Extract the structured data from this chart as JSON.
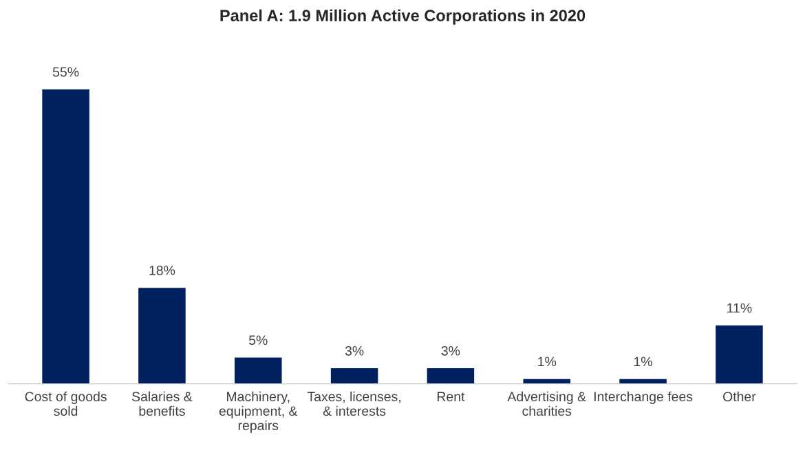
{
  "chart_data": {
    "type": "bar",
    "title": "Panel A: 1.9 Million Active Corporations in 2020",
    "categories": [
      "Cost of goods\nsold",
      "Salaries &\nbenefits",
      "Machinery,\nequipment, &\nrepairs",
      "Taxes, licenses,\n& interests",
      "Rent",
      "Advertising &\ncharities",
      "Interchange fees",
      "Other"
    ],
    "values": [
      55,
      18,
      5,
      3,
      3,
      1,
      1,
      11
    ],
    "value_labels": [
      "55%",
      "18%",
      "5%",
      "3%",
      "3%",
      "1%",
      "1%",
      "11%"
    ],
    "color": "#002060",
    "tick_labels": "x",
    "grid": false,
    "legend": false
  }
}
